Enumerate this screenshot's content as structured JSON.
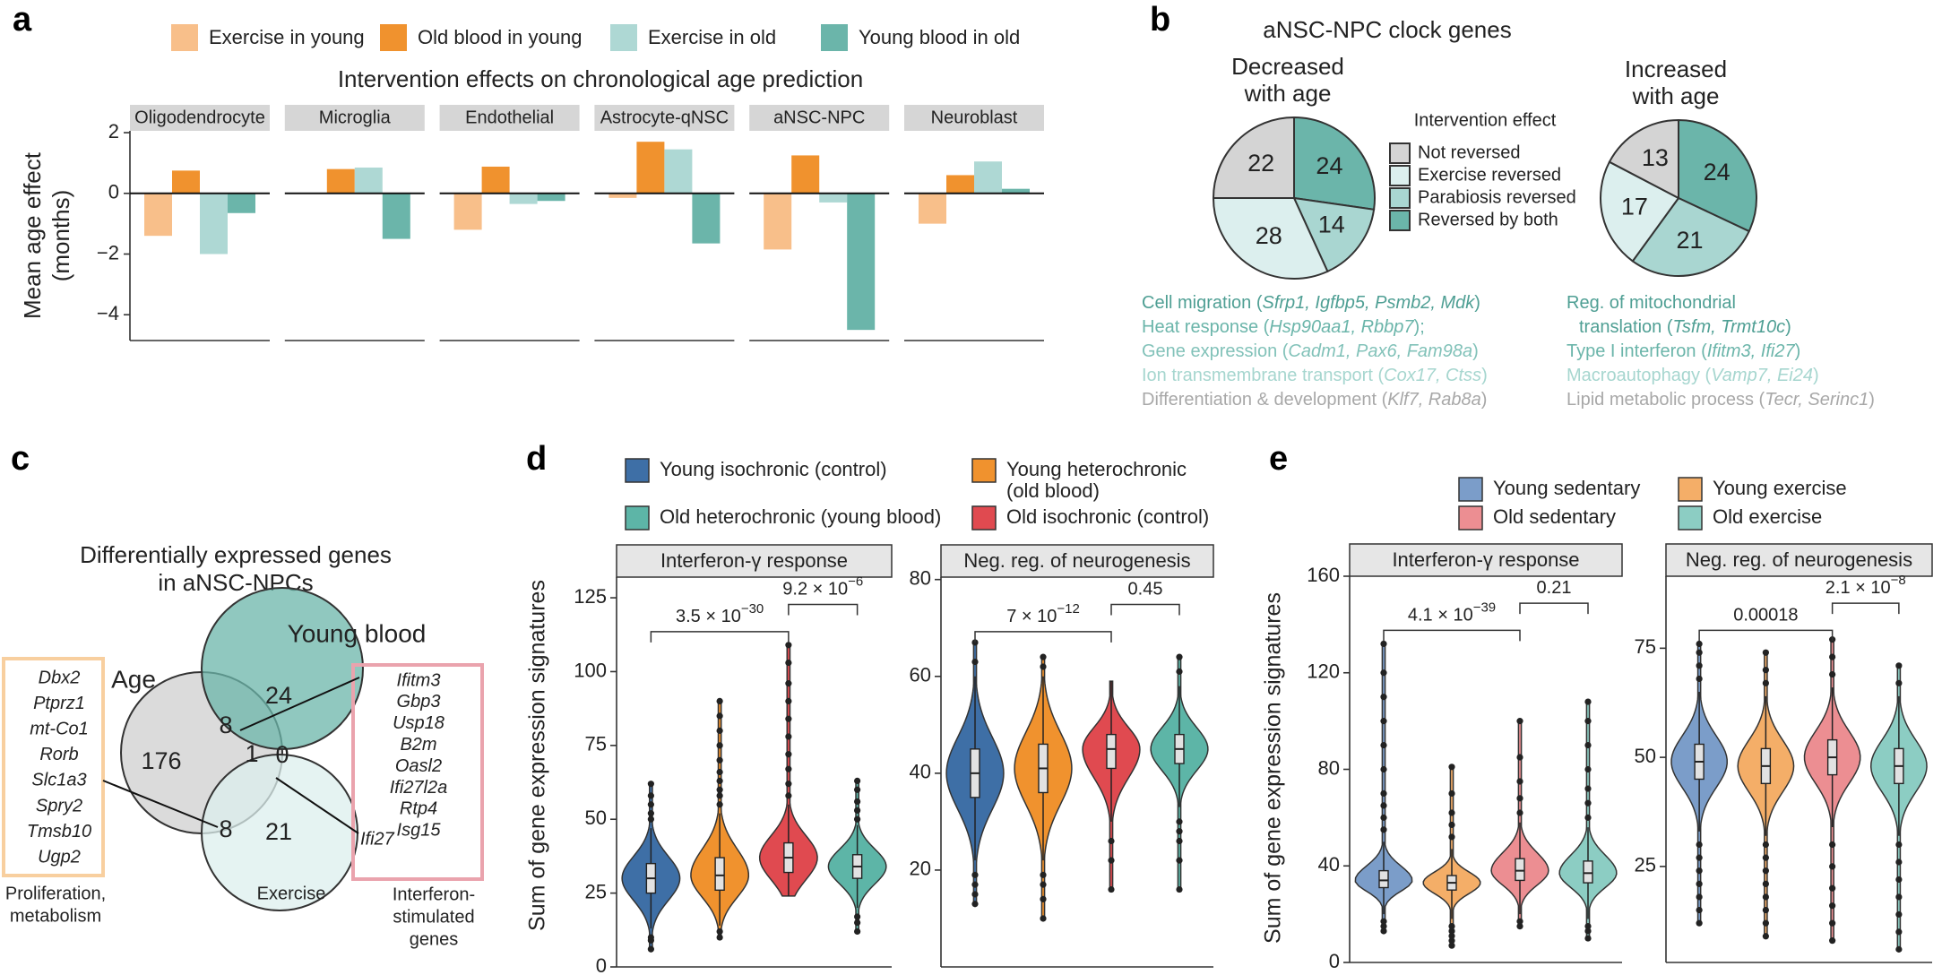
{
  "chart_data": [
    {
      "type": "bar",
      "panel_label": "a",
      "title": "Intervention effects on chronological age prediction",
      "y_label": [
        "Mean age effect",
        "(months)"
      ],
      "facets": [
        "Oligodendrocyte",
        "Microglia",
        "Endothelial",
        "Astrocyte-qNSC",
        "aNSC-NPC",
        "Neuroblast"
      ],
      "series": [
        {
          "name": "Exercise in young",
          "color": "#f8bf8a",
          "values": [
            -1.4,
            0.02,
            -1.2,
            -0.15,
            -1.85,
            -1.0
          ]
        },
        {
          "name": "Old blood in young",
          "color": "#f0922e",
          "values": [
            0.75,
            0.8,
            0.88,
            1.7,
            1.25,
            0.6
          ]
        },
        {
          "name": "Exercise in old",
          "color": "#aed8d4",
          "values": [
            -2.0,
            0.85,
            -0.35,
            1.45,
            -0.3,
            1.05
          ]
        },
        {
          "name": "Young blood in old",
          "color": "#6bb5aa",
          "values": [
            -0.65,
            -1.5,
            -0.25,
            -1.65,
            -4.5,
            0.15
          ]
        }
      ],
      "ylim": [
        -4.85,
        2.06
      ],
      "yticks": [
        {
          "value": -4,
          "label": "−4"
        },
        {
          "value": -2,
          "label": "−2"
        },
        0,
        2
      ]
    },
    {
      "type": "pie",
      "panel_label": "b",
      "title": "aNSC-NPC clock genes",
      "legend_title": "Intervention effect",
      "categories": [
        "Not reversed",
        "Exercise reversed",
        "Parabiosis reversed",
        "Reversed by both"
      ],
      "colors": [
        "#d4d4d4",
        "#dcefee",
        "#a9d6d1",
        "#6bb5aa"
      ],
      "pies": [
        {
          "title": [
            "Decreased",
            "with age"
          ],
          "values": [
            22,
            28,
            14,
            24
          ]
        },
        {
          "title": [
            "Increased",
            "with age"
          ],
          "values": [
            13,
            17,
            21,
            24
          ]
        }
      ],
      "annotations": [
        [
          {
            "text": "Cell migration (",
            "genes": "Sfrp1, Igfbp5, Psmb2, Mdk",
            "end": ")",
            "color": "#4f9f94"
          },
          {
            "text": "Heat response (",
            "genes": "Hsp90aa1, Rbbp7",
            "end": ");",
            "color": "#6bb5aa"
          },
          {
            "text": "Gene expression (",
            "genes": "Cadm1, Pax6, Fam98a",
            "end": ")",
            "color": "#82c2b9"
          },
          {
            "text": "Ion transmembrane transport (",
            "genes": "Cox17, Ctss",
            "end": ")",
            "color": "#a6d6cf"
          },
          {
            "text": "Differentiation & development (",
            "genes": "Klf7, Rab8a",
            "end": ")",
            "color": "#a8a8a8"
          }
        ],
        [
          {
            "text": "Reg. of mitochondrial",
            "color": "#4f9f94"
          },
          {
            "text": "translation (",
            "genes": "Tsfm, Trmt10c",
            "end": ")",
            "color": "#4f9f94"
          },
          {
            "text": "Type I interferon (",
            "genes": "Ifitm3, Ifi27",
            "end": ")",
            "color": "#6bb5aa"
          },
          {
            "text": "Macroautophagy (",
            "genes": "Vamp7, Ei24",
            "end": ")",
            "color": "#a6d6cf"
          },
          {
            "text": "Lipid metabolic process (",
            "genes": "Tecr, Serinc1",
            "end": ")",
            "color": "#a8a8a8"
          }
        ]
      ]
    },
    {
      "type": "venn",
      "panel_label": "c",
      "title": [
        "Differentially expressed genes",
        "in aNSC-NPCs"
      ],
      "sets": [
        {
          "name": "Age",
          "color": "#cfcfcf"
        },
        {
          "name": "Young blood",
          "color": "#6bb5aa"
        },
        {
          "name": "Exercise",
          "color": "#dcefee"
        }
      ],
      "regions": [
        {
          "sets": [
            "Age"
          ],
          "value": 176
        },
        {
          "sets": [
            "Young blood"
          ],
          "value": 24
        },
        {
          "sets": [
            "Exercise"
          ],
          "value": 21
        },
        {
          "sets": [
            "Age",
            "Young blood"
          ],
          "value": 8
        },
        {
          "sets": [
            "Age",
            "Exercise"
          ],
          "value": 8
        },
        {
          "sets": [
            "Age",
            "Young blood",
            "Exercise"
          ],
          "value": 1
        },
        {
          "sets": [
            "Young blood",
            "Exercise"
          ],
          "value": 0
        }
      ],
      "gene_boxes": [
        {
          "genes": [
            "Dbx2",
            "Ptprz1",
            "mt-Co1",
            "Rorb",
            "Slc1a3",
            "Spry2",
            "Tmsb10",
            "Ugp2"
          ],
          "caption": [
            "Proliferation,",
            "metabolism"
          ],
          "color": "#f8cf9f"
        },
        {
          "genes": [
            "Ifitm3",
            "Gbp3",
            "Usp18",
            "B2m",
            "Oasl2",
            "Ifi27l2a",
            "Rtp4",
            "Isg15"
          ],
          "caption": [
            "Interferon-",
            "stimulated",
            "genes"
          ],
          "color": "#eaa3ad"
        }
      ],
      "callout": "Ifi27"
    },
    {
      "type": "violin",
      "panel_label": "d",
      "y_label": "Sum of gene expression signatures",
      "series": [
        {
          "name": "Young isochronic (control)",
          "color": "#3e6fa6"
        },
        {
          "name": [
            "Young heterochronic",
            "(old blood)"
          ],
          "color": "#f0922e"
        },
        {
          "name": "Old isochronic (control)",
          "color": "#e04a50"
        },
        {
          "name": "Old heterochronic (young blood)",
          "color": "#5db5a7"
        }
      ],
      "facets": [
        {
          "title": "Interferon-γ response",
          "ylim": [
            0,
            132
          ],
          "yticks": [
            0,
            25,
            50,
            75,
            100,
            125
          ],
          "violins": [
            {
              "whiskers": [
                13,
                47
              ],
              "box": [
                25,
                35
              ],
              "median": 30,
              "outliers": [
                6,
                9,
                10,
                50,
                52,
                55,
                58,
                62
              ]
            },
            {
              "whiskers": [
                14,
                52
              ],
              "box": [
                26,
                37
              ],
              "median": 31,
              "outliers": [
                10,
                12,
                55,
                58,
                60,
                63,
                66,
                70,
                75,
                80,
                85,
                90
              ]
            },
            {
              "whiskers": [
                24,
                55
              ],
              "box": [
                32,
                42
              ],
              "median": 37,
              "outliers": [
                58,
                62,
                67,
                72,
                78,
                84,
                90,
                96,
                103,
                109
              ]
            },
            {
              "whiskers": [
                20,
                48
              ],
              "box": [
                30,
                38
              ],
              "median": 34,
              "outliers": [
                12,
                15,
                17,
                50,
                53,
                56,
                60,
                63
              ]
            }
          ],
          "brackets": [
            {
              "label": "3.5 × 10",
              "exponent": "−30"
            },
            {
              "label": "9.2 × 10",
              "exponent": "−6"
            }
          ]
        },
        {
          "title": "Neg. reg. of neurogenesis",
          "ylim": [
            0,
            80.5
          ],
          "yticks": [
            20,
            40,
            60,
            80
          ],
          "violins": [
            {
              "whiskers": [
                22,
                60
              ],
              "box": [
                35,
                45
              ],
              "median": 40,
              "outliers": [
                13,
                15,
                17,
                19,
                63,
                67
              ]
            },
            {
              "whiskers": [
                22,
                60
              ],
              "box": [
                36,
                46
              ],
              "median": 41,
              "outliers": [
                10,
                14,
                17,
                19,
                62,
                64
              ]
            },
            {
              "whiskers": [
                30,
                59
              ],
              "box": [
                41,
                48
              ],
              "median": 45,
              "outliers": [
                16,
                22,
                26
              ]
            },
            {
              "whiskers": [
                33,
                58
              ],
              "box": [
                42,
                48
              ],
              "median": 45,
              "outliers": [
                16,
                22,
                26,
                28,
                30,
                61,
                64
              ]
            }
          ],
          "brackets": [
            {
              "label": "7 × 10",
              "exponent": "−12"
            },
            {
              "label": "0.45"
            }
          ]
        }
      ]
    },
    {
      "type": "violin",
      "panel_label": "e",
      "y_label": "Sum of gene expression signatures",
      "series": [
        {
          "name": "Young sedentary",
          "color": "#7b9dc9"
        },
        {
          "name": "Young exercise",
          "color": "#f4ae68"
        },
        {
          "name": "Old sedentary",
          "color": "#ec8e92"
        },
        {
          "name": "Old exercise",
          "color": "#8ccdc3"
        }
      ],
      "facets": [
        {
          "title": "Interferon-γ response",
          "ylim": [
            0,
            160
          ],
          "yticks": [
            0,
            40,
            80,
            120,
            160
          ],
          "violins": [
            {
              "whiskers": [
                20,
                50
              ],
              "box": [
                31,
                38
              ],
              "median": 34,
              "outliers": [
                13,
                15,
                17,
                55,
                60,
                65,
                70,
                80,
                90,
                100,
                110,
                120,
                132
              ]
            },
            {
              "whiskers": [
                18,
                47
              ],
              "box": [
                30,
                36
              ],
              "median": 33,
              "outliers": [
                7,
                9,
                11,
                13,
                15,
                52,
                57,
                62,
                70,
                81
              ]
            },
            {
              "whiskers": [
                20,
                58
              ],
              "box": [
                34,
                43
              ],
              "median": 38,
              "outliers": [
                15,
                17,
                62,
                68,
                75,
                85,
                100
              ]
            },
            {
              "whiskers": [
                18,
                56
              ],
              "box": [
                33,
                42
              ],
              "median": 37,
              "outliers": [
                10,
                13,
                15,
                60,
                66,
                72,
                80,
                90,
                100,
                108
              ]
            }
          ],
          "brackets": [
            {
              "label": "4.1 × 10",
              "exponent": "−39"
            },
            {
              "label": "0.21"
            }
          ]
        },
        {
          "title": "Neg. reg. of neurogenesis",
          "ylim": [
            3,
            91.5
          ],
          "yticks": [
            25,
            50,
            75
          ],
          "violins": [
            {
              "whiskers": [
                33,
                65
              ],
              "box": [
                45,
                53
              ],
              "median": 49,
              "outliers": [
                12,
                15,
                18,
                21,
                24,
                27,
                30,
                68,
                71,
                74,
                76
              ]
            },
            {
              "whiskers": [
                32,
                64
              ],
              "box": [
                44,
                52
              ],
              "median": 48,
              "outliers": [
                9,
                12,
                15,
                18,
                21,
                24,
                27,
                30,
                67,
                70,
                74
              ]
            },
            {
              "whiskers": [
                34,
                66
              ],
              "box": [
                46,
                54
              ],
              "median": 50,
              "outliers": [
                8,
                12,
                16,
                20,
                25,
                30,
                69,
                73,
                77
              ]
            },
            {
              "whiskers": [
                32,
                64
              ],
              "box": [
                44,
                52
              ],
              "median": 48,
              "outliers": [
                6,
                10,
                14,
                18,
                22,
                26,
                30,
                67,
                71
              ]
            }
          ],
          "brackets": [
            {
              "label": "0.00018"
            },
            {
              "label": "2.1 × 10",
              "exponent": "−8"
            }
          ]
        }
      ]
    }
  ]
}
